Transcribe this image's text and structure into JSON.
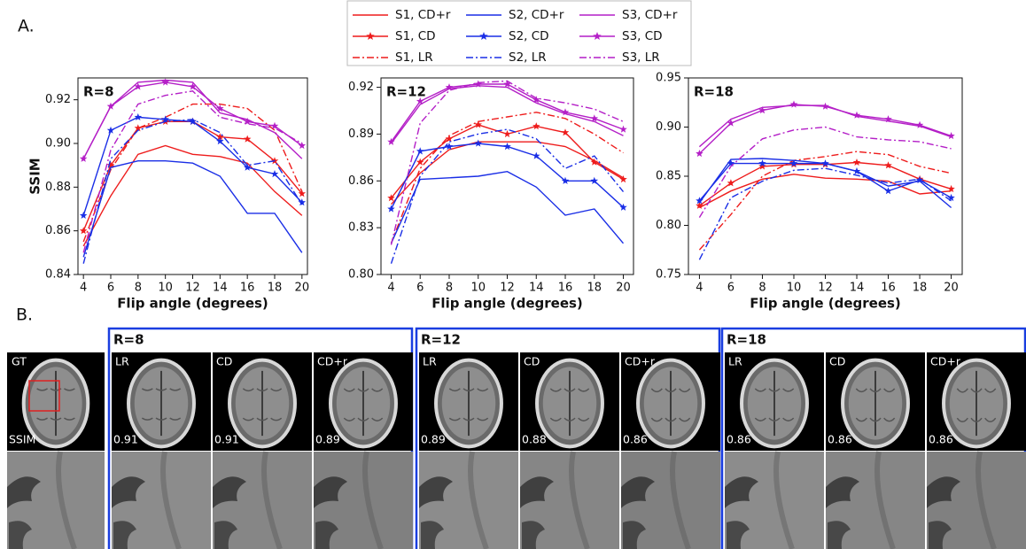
{
  "panel_a_label": "A.",
  "chart_data": [
    {
      "type": "line",
      "title": "R=8",
      "xlabel": "Flip angle (degrees)",
      "ylabel": "SSIM",
      "x": [
        4,
        6,
        8,
        10,
        12,
        14,
        16,
        18,
        20
      ],
      "xlim": [
        3.6,
        20.4
      ],
      "xticks": [
        4,
        6,
        8,
        10,
        12,
        14,
        16,
        18,
        20
      ],
      "ylim": [
        0.84,
        0.93
      ],
      "yticks": [
        0.84,
        0.86,
        0.88,
        {
          "value": 0.9,
          "label": "0.90"
        },
        0.92
      ],
      "series": [
        {
          "name": "S1, CD+r",
          "color": "#ee1c1c",
          "style": "solid",
          "marker": "none",
          "values": [
            0.853,
            0.876,
            0.895,
            0.899,
            0.895,
            0.894,
            0.891,
            0.878,
            0.867
          ]
        },
        {
          "name": "S1, CD",
          "color": "#ee1c1c",
          "style": "solid",
          "marker": "star",
          "values": [
            0.86,
            0.89,
            0.907,
            0.91,
            0.91,
            0.903,
            0.902,
            0.892,
            0.877
          ]
        },
        {
          "name": "S1, LR",
          "color": "#ee1c1c",
          "style": "dashdot",
          "marker": "none",
          "values": [
            0.855,
            0.888,
            0.907,
            0.912,
            0.918,
            0.918,
            0.916,
            0.906,
            0.878
          ]
        },
        {
          "name": "S2, CD+r",
          "color": "#1a2ee6",
          "style": "solid",
          "marker": "none",
          "values": [
            0.848,
            0.889,
            0.892,
            0.892,
            0.891,
            0.885,
            0.868,
            0.868,
            0.85
          ]
        },
        {
          "name": "S2, CD",
          "color": "#1a2ee6",
          "style": "solid",
          "marker": "star",
          "values": [
            0.867,
            0.906,
            0.912,
            0.911,
            0.91,
            0.901,
            0.889,
            0.886,
            0.873
          ]
        },
        {
          "name": "S2, LR",
          "color": "#1a2ee6",
          "style": "dashdot",
          "marker": "none",
          "values": [
            0.845,
            0.893,
            0.906,
            0.91,
            0.911,
            0.905,
            0.89,
            0.892,
            0.872
          ]
        },
        {
          "name": "S3, CD+r",
          "color": "#b41fc7",
          "style": "solid",
          "marker": "none",
          "values": [
            0.893,
            0.917,
            0.928,
            0.929,
            0.928,
            0.914,
            0.911,
            0.905,
            0.893
          ]
        },
        {
          "name": "S3, CD",
          "color": "#b41fc7",
          "style": "solid",
          "marker": "star",
          "values": [
            0.893,
            0.917,
            0.926,
            0.928,
            0.926,
            0.916,
            0.91,
            0.908,
            0.899
          ]
        },
        {
          "name": "S3, LR",
          "color": "#b41fc7",
          "style": "dashdot",
          "marker": "none",
          "values": [
            0.85,
            0.897,
            0.918,
            0.922,
            0.924,
            0.912,
            0.909,
            0.907,
            0.9
          ]
        }
      ]
    },
    {
      "type": "line",
      "title": "R=12",
      "xlabel": "Flip angle (degrees)",
      "x": [
        4,
        6,
        8,
        10,
        12,
        14,
        16,
        18,
        20
      ],
      "xlim": [
        3.3,
        20.7
      ],
      "xticks": [
        4,
        6,
        8,
        10,
        12,
        14,
        16,
        18,
        20
      ],
      "ylim": [
        0.8,
        0.926
      ],
      "yticks": [
        {
          "value": 0.8,
          "label": "0.80"
        },
        0.83,
        0.86,
        0.89,
        0.92
      ],
      "series": [
        {
          "color": "#ee1c1c",
          "style": "solid",
          "marker": "none",
          "values": [
            0.845,
            0.865,
            0.88,
            0.885,
            0.885,
            0.885,
            0.882,
            0.873,
            0.862
          ]
        },
        {
          "color": "#ee1c1c",
          "style": "solid",
          "marker": "star",
          "values": [
            0.849,
            0.872,
            0.887,
            0.896,
            0.89,
            0.895,
            0.891,
            0.872,
            0.861
          ]
        },
        {
          "color": "#ee1c1c",
          "style": "dashdot",
          "marker": "none",
          "values": [
            0.82,
            0.868,
            0.889,
            0.898,
            0.901,
            0.904,
            0.9,
            0.89,
            0.878
          ]
        },
        {
          "color": "#1a2ee6",
          "style": "solid",
          "marker": "none",
          "values": [
            0.82,
            0.861,
            0.862,
            0.863,
            0.866,
            0.856,
            0.838,
            0.842,
            0.82
          ]
        },
        {
          "color": "#1a2ee6",
          "style": "solid",
          "marker": "star",
          "values": [
            0.842,
            0.879,
            0.882,
            0.884,
            0.882,
            0.876,
            0.86,
            0.86,
            0.843
          ]
        },
        {
          "color": "#1a2ee6",
          "style": "dashdot",
          "marker": "none",
          "values": [
            0.807,
            0.863,
            0.885,
            0.89,
            0.893,
            0.887,
            0.868,
            0.876,
            0.853
          ]
        },
        {
          "color": "#b41fc7",
          "style": "solid",
          "marker": "none",
          "values": [
            0.884,
            0.909,
            0.919,
            0.921,
            0.92,
            0.91,
            0.903,
            0.898,
            0.889
          ]
        },
        {
          "color": "#b41fc7",
          "style": "solid",
          "marker": "star",
          "values": [
            0.885,
            0.911,
            0.92,
            0.922,
            0.922,
            0.912,
            0.904,
            0.9,
            0.893
          ]
        },
        {
          "color": "#b41fc7",
          "style": "dashdot",
          "marker": "none",
          "values": [
            0.819,
            0.897,
            0.918,
            0.923,
            0.924,
            0.913,
            0.91,
            0.906,
            0.898
          ]
        }
      ]
    },
    {
      "type": "line",
      "title": "R=18",
      "xlabel": "Flip angle (degrees)",
      "x": [
        4,
        6,
        8,
        10,
        12,
        14,
        16,
        18,
        20
      ],
      "xlim": [
        3.3,
        20.7
      ],
      "xticks": [
        4,
        6,
        8,
        10,
        12,
        14,
        16,
        18,
        20
      ],
      "ylim": [
        0.75,
        0.95
      ],
      "yticks": [
        0.75,
        {
          "value": 0.8,
          "label": "0.80"
        },
        0.85,
        {
          "value": 0.9,
          "label": "0.90"
        },
        0.95
      ],
      "series": [
        {
          "color": "#ee1c1c",
          "style": "solid",
          "marker": "none",
          "values": [
            0.818,
            0.835,
            0.847,
            0.852,
            0.848,
            0.847,
            0.845,
            0.832,
            0.835
          ]
        },
        {
          "color": "#ee1c1c",
          "style": "solid",
          "marker": "star",
          "values": [
            0.82,
            0.843,
            0.86,
            0.862,
            0.862,
            0.864,
            0.861,
            0.847,
            0.837
          ]
        },
        {
          "color": "#ee1c1c",
          "style": "dashdot",
          "marker": "none",
          "values": [
            0.775,
            0.811,
            0.85,
            0.866,
            0.87,
            0.875,
            0.872,
            0.86,
            0.853
          ]
        },
        {
          "color": "#1a2ee6",
          "style": "solid",
          "marker": "none",
          "values": [
            0.823,
            0.867,
            0.868,
            0.866,
            0.863,
            0.855,
            0.84,
            0.845,
            0.818
          ]
        },
        {
          "color": "#1a2ee6",
          "style": "solid",
          "marker": "star",
          "values": [
            0.825,
            0.863,
            0.863,
            0.863,
            0.863,
            0.855,
            0.835,
            0.846,
            0.828
          ]
        },
        {
          "color": "#1a2ee6",
          "style": "dashdot",
          "marker": "none",
          "values": [
            0.765,
            0.828,
            0.845,
            0.856,
            0.858,
            0.851,
            0.843,
            0.847,
            0.825
          ]
        },
        {
          "color": "#b41fc7",
          "style": "solid",
          "marker": "none",
          "values": [
            0.88,
            0.908,
            0.92,
            0.922,
            0.922,
            0.911,
            0.906,
            0.901,
            0.89
          ]
        },
        {
          "color": "#b41fc7",
          "style": "solid",
          "marker": "star",
          "values": [
            0.873,
            0.904,
            0.917,
            0.923,
            0.921,
            0.912,
            0.908,
            0.902,
            0.891
          ]
        },
        {
          "color": "#b41fc7",
          "style": "dashdot",
          "marker": "none",
          "values": [
            0.808,
            0.86,
            0.888,
            0.897,
            0.9,
            0.89,
            0.887,
            0.885,
            0.878
          ]
        }
      ]
    }
  ],
  "panel_b": {
    "label": "B.",
    "reference": {
      "label": "GT",
      "metric": "SSIM"
    },
    "groups": [
      {
        "title": "R=8",
        "images": [
          {
            "label": "LR",
            "ssim": 0.91
          },
          {
            "label": "CD",
            "ssim": 0.91
          },
          {
            "label": "CD+r",
            "ssim": 0.89
          }
        ]
      },
      {
        "title": "R=12",
        "images": [
          {
            "label": "LR",
            "ssim": 0.89
          },
          {
            "label": "CD",
            "ssim": 0.88
          },
          {
            "label": "CD+r",
            "ssim": 0.86
          }
        ]
      },
      {
        "title": "R=18",
        "images": [
          {
            "label": "LR",
            "ssim": 0.86
          },
          {
            "label": "CD",
            "ssim": 0.86
          },
          {
            "label": "CD+r",
            "ssim": 0.86
          }
        ]
      }
    ]
  }
}
